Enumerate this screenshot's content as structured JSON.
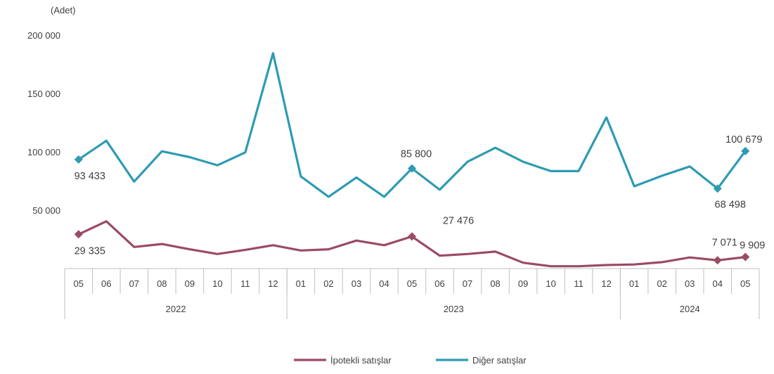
{
  "chart_data": {
    "type": "line",
    "unit_label": "(Adet)",
    "y_ticks": [
      "200 000",
      "150 000",
      "100 000",
      "50 000"
    ],
    "y_tick_values": [
      200000,
      150000,
      100000,
      50000
    ],
    "ylim": [
      0,
      200000
    ],
    "grid": false,
    "legend_position": "bottom",
    "categories": [
      "05",
      "06",
      "07",
      "08",
      "09",
      "10",
      "11",
      "12",
      "01",
      "02",
      "03",
      "04",
      "05",
      "06",
      "07",
      "08",
      "09",
      "10",
      "11",
      "12",
      "01",
      "02",
      "03",
      "04",
      "05"
    ],
    "years": [
      {
        "label": "2022",
        "start": 0,
        "end": 7
      },
      {
        "label": "2023",
        "start": 8,
        "end": 19
      },
      {
        "label": "2024",
        "start": 20,
        "end": 24
      }
    ],
    "series": [
      {
        "name": "İpotekli satışlar",
        "color": "#9b4b63",
        "values": [
          29335,
          40500,
          18500,
          21000,
          16500,
          12500,
          16000,
          20000,
          15500,
          16500,
          24000,
          20000,
          27476,
          11000,
          12500,
          14500,
          5000,
          2000,
          2000,
          3000,
          3500,
          5500,
          9500,
          7071,
          9909
        ],
        "markers": [
          {
            "index": 0,
            "label": "29 335"
          },
          {
            "index": 12,
            "label": "27 476"
          },
          {
            "index": 23,
            "label": "7 071"
          },
          {
            "index": 24,
            "label": "9 909"
          }
        ]
      },
      {
        "name": "Diğer satışlar",
        "color": "#2e9bb3",
        "values": [
          93433,
          109500,
          74500,
          100500,
          95500,
          88500,
          99500,
          184500,
          79000,
          61500,
          78000,
          61500,
          85800,
          67500,
          91500,
          103500,
          91500,
          83500,
          83500,
          129500,
          70500,
          79500,
          87500,
          68498,
          100679
        ],
        "markers": [
          {
            "index": 0,
            "label": "93 433"
          },
          {
            "index": 12,
            "label": "85 800"
          },
          {
            "index": 23,
            "label": "68 498"
          },
          {
            "index": 24,
            "label": "100 679"
          }
        ]
      }
    ]
  }
}
